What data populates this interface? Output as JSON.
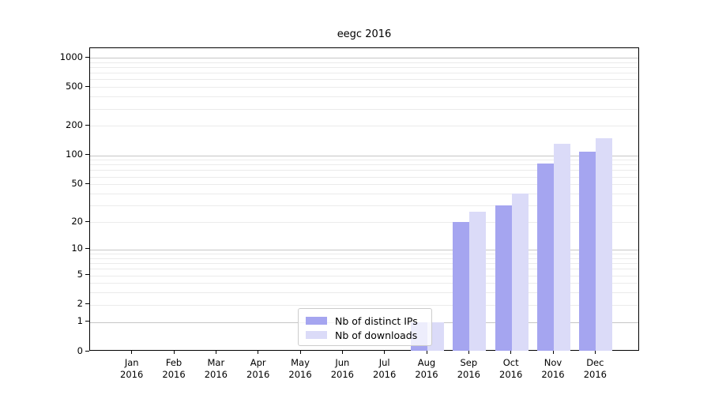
{
  "title": "eegc 2016",
  "legend": {
    "items": [
      {
        "label": "Nb of distinct IPs"
      },
      {
        "label": "Nb of downloads"
      }
    ]
  },
  "chart_data": {
    "type": "bar",
    "title": "eegc 2016",
    "categories": [
      "Jan 2016",
      "Feb 2016",
      "Mar 2016",
      "Apr 2016",
      "May 2016",
      "Jun 2016",
      "Jul 2016",
      "Aug 2016",
      "Sep 2016",
      "Oct 2016",
      "Nov 2016",
      "Dec 2016"
    ],
    "series": [
      {
        "name": "Nb of distinct IPs",
        "color": "#a5a5f0",
        "values": [
          0,
          0,
          0,
          0,
          0,
          0,
          0,
          1,
          20,
          30,
          82,
          108
        ]
      },
      {
        "name": "Nb of downloads",
        "color": "#dbdbf8",
        "values": [
          0,
          0,
          0,
          0,
          0,
          0,
          0,
          1,
          26,
          40,
          130,
          150
        ]
      }
    ],
    "xlabel": "",
    "ylabel": "",
    "yticks": [
      0,
      1,
      2,
      5,
      10,
      20,
      50,
      100,
      200,
      500,
      1000
    ],
    "ylim": [
      0,
      1250
    ],
    "yscale": "log10(1+v)",
    "grid": {
      "major_at": [
        1,
        10,
        100,
        1000
      ],
      "minor": "2-9 per decade",
      "major_color": "#c6c6c6",
      "minor_color": "#ebebeb"
    },
    "legend_position": "lower center"
  },
  "colors": {
    "background": "#ffffff",
    "spine": "#000000",
    "bar_distinct_ips": "#a5a5f0",
    "bar_downloads": "#dbdbf8"
  }
}
